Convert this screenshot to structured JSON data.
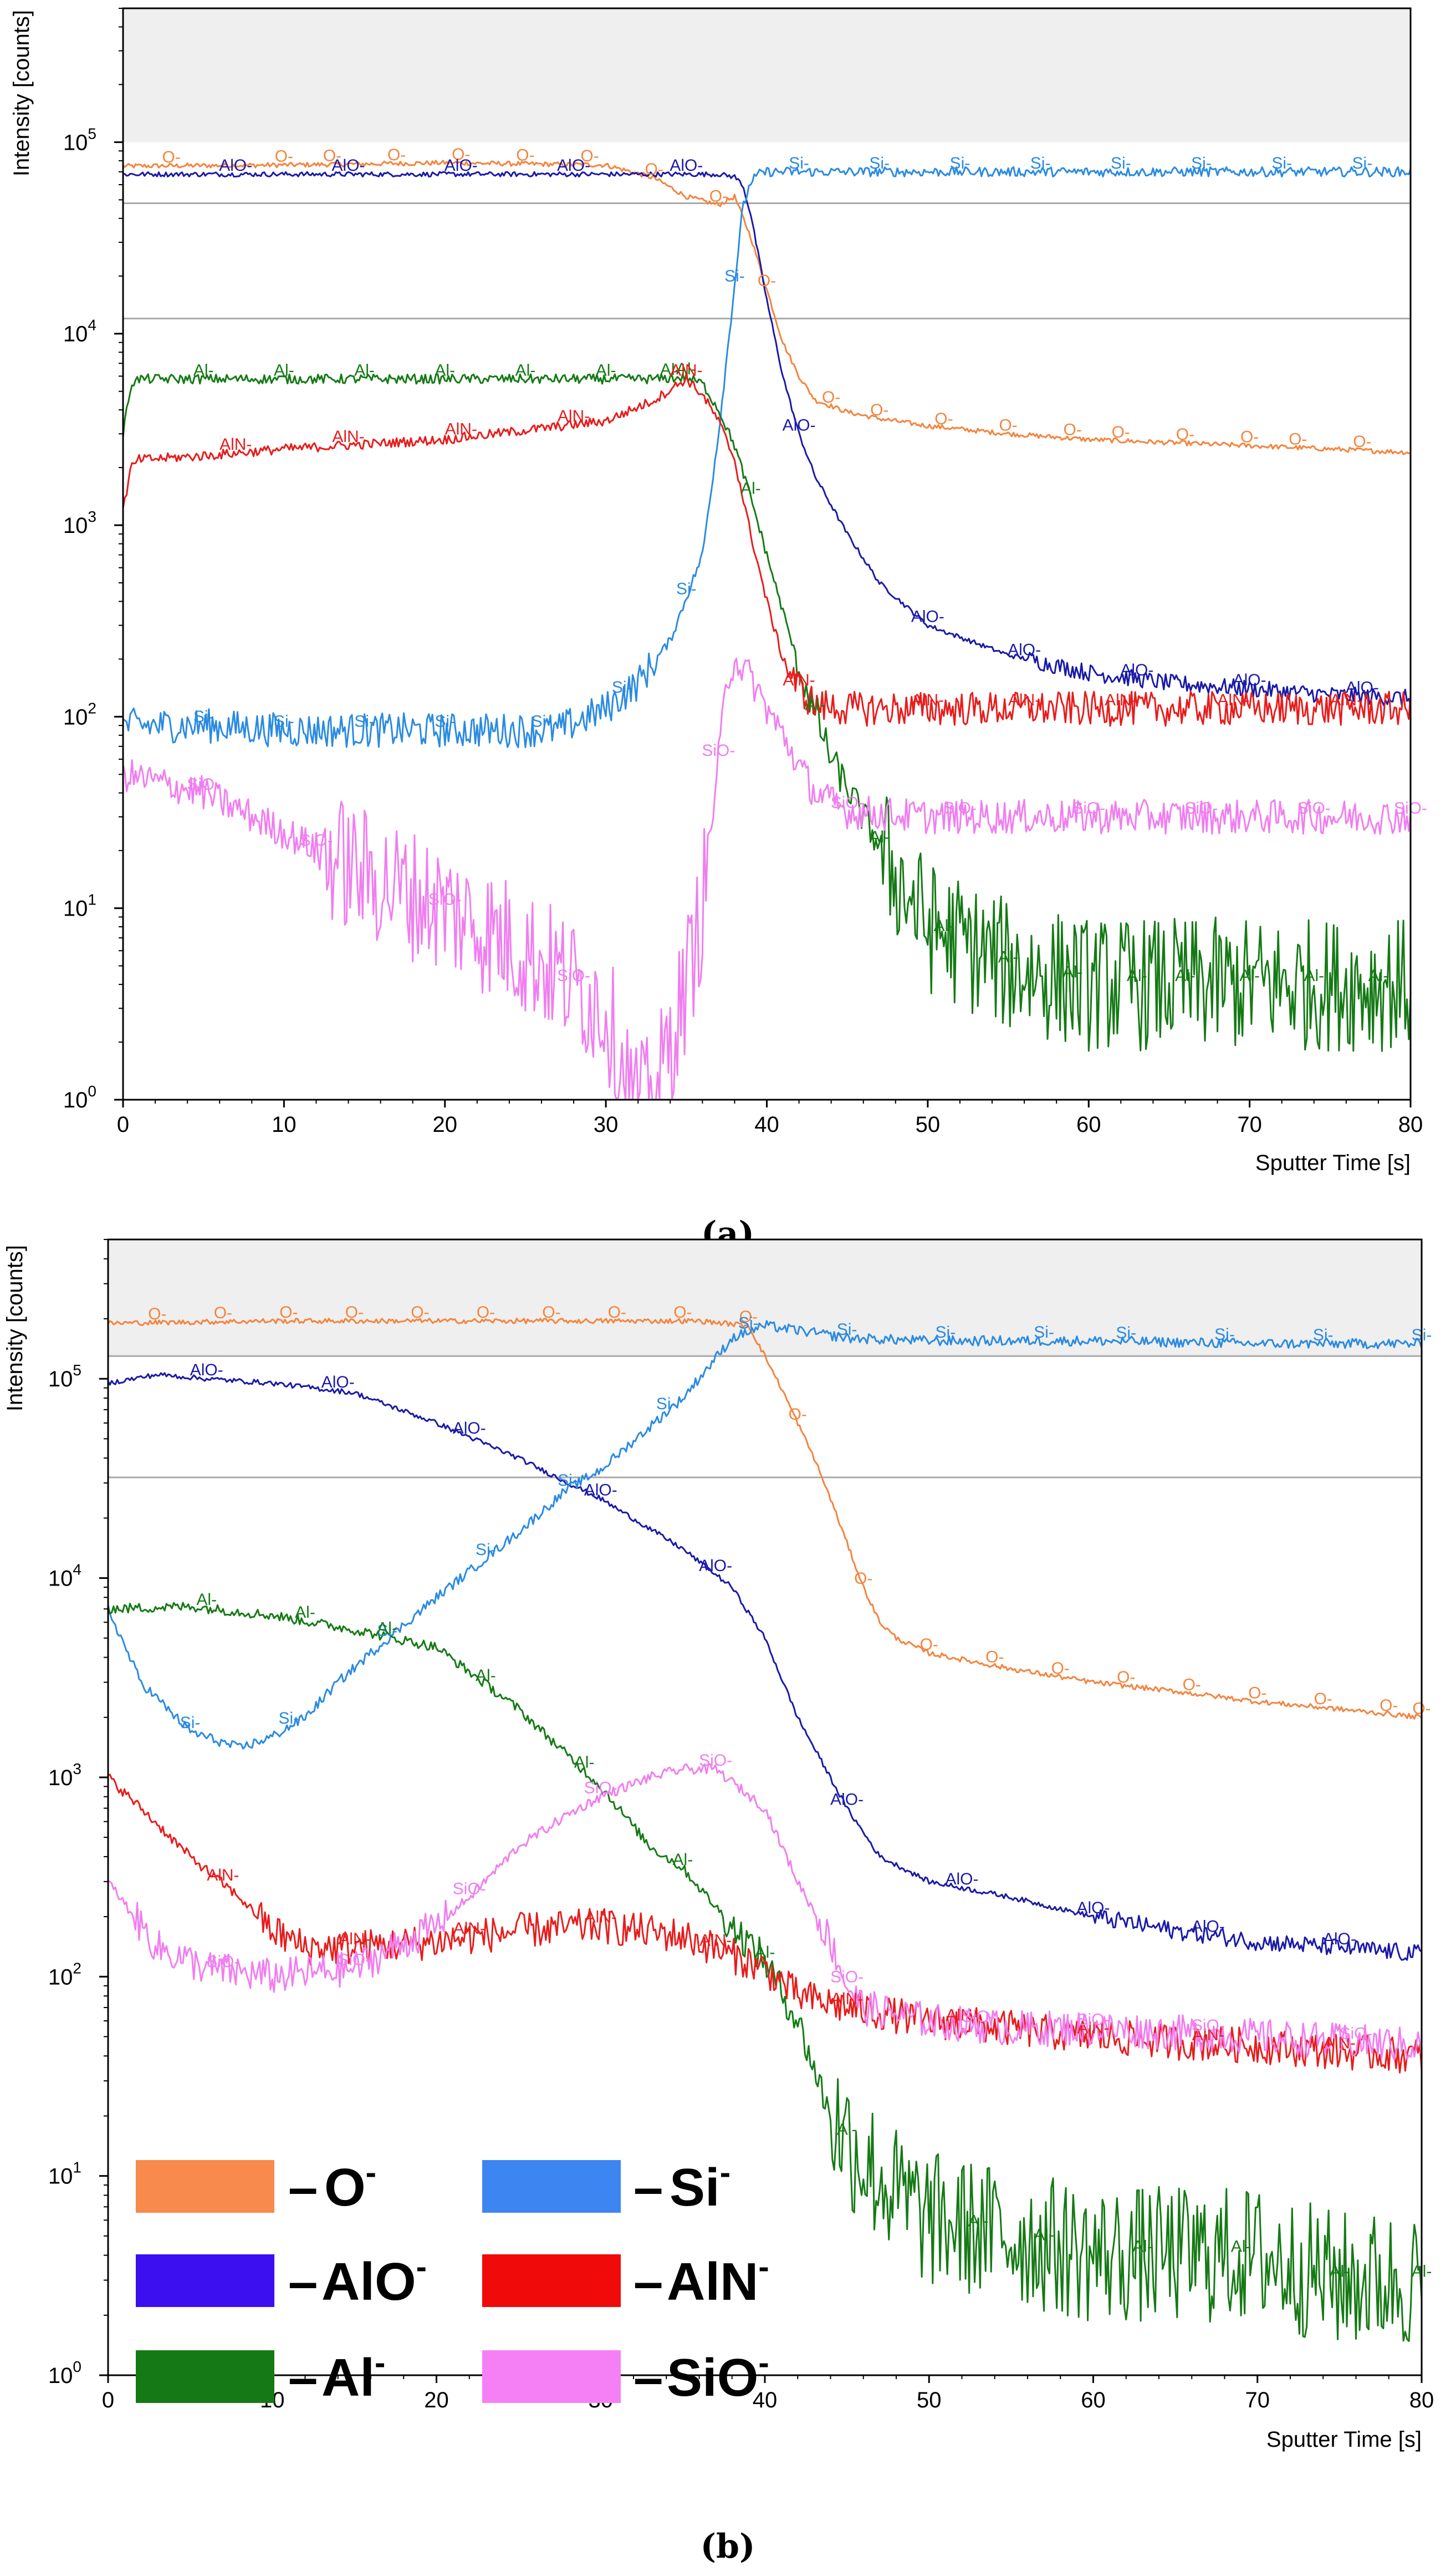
{
  "colors": {
    "O-": "#f4843e",
    "AlO-": "#1a1aa8",
    "Si-": "#2b8be0",
    "Al-": "#157a15",
    "AlN-": "#e81c1c",
    "SiO-": "#f07ef0"
  },
  "legend": {
    "items": [
      {
        "key": "O-",
        "text": "O",
        "sup": "-",
        "swatch": "#f78a4c"
      },
      {
        "key": "Si-",
        "text": "Si",
        "sup": "-",
        "swatch": "#3d85f0"
      },
      {
        "key": "AlO-",
        "text": "AlO",
        "sup": "-",
        "swatch": "#3b0ff0"
      },
      {
        "key": "AlN-",
        "text": "AlN",
        "sup": "-",
        "swatch": "#f00a0a"
      },
      {
        "key": "Al-",
        "text": "Al",
        "sup": "-",
        "swatch": "#157a15"
      },
      {
        "key": "SiO-",
        "text": "SiO",
        "sup": "-",
        "swatch": "#f580f5"
      }
    ]
  },
  "chart_data": [
    {
      "panel_label": "(a)",
      "type": "line",
      "ylabel": "Intensity [counts]",
      "xlabel": "Sputter Time [s]",
      "yscale": "log",
      "xlim": [
        0,
        80
      ],
      "ylim": [
        1,
        500000
      ],
      "xticks": [
        0,
        10,
        20,
        30,
        40,
        50,
        60,
        70,
        80
      ],
      "yticks": [
        {
          "value": 1,
          "base": "10",
          "exp": "0"
        },
        {
          "value": 10,
          "base": "10",
          "exp": "1"
        },
        {
          "value": 100,
          "base": "10",
          "exp": "2"
        },
        {
          "value": 1000,
          "base": "10",
          "exp": "3"
        },
        {
          "value": 10000,
          "base": "10",
          "exp": "4"
        },
        {
          "value": 100000,
          "base": "10",
          "exp": "5"
        }
      ],
      "shaded_above": 100000,
      "reference_lines": [
        48000,
        12000
      ],
      "series": [
        {
          "name": "O-",
          "x": [
            0,
            10,
            20,
            30,
            33,
            35,
            37,
            38,
            39,
            40,
            41,
            42,
            43,
            45,
            47,
            50,
            55,
            60,
            65,
            70,
            75,
            80
          ],
          "y": [
            75000,
            76000,
            78000,
            76000,
            65000,
            52000,
            47000,
            52000,
            32000,
            17000,
            9000,
            6000,
            4500,
            3900,
            3600,
            3300,
            3000,
            2800,
            2700,
            2600,
            2500,
            2400
          ],
          "labels": [
            3,
            10,
            13,
            17,
            21,
            25,
            29,
            33,
            37,
            40,
            44,
            47,
            51,
            55,
            59,
            62,
            66,
            70,
            73,
            77
          ]
        },
        {
          "name": "AlO-",
          "x": [
            0,
            10,
            20,
            30,
            35,
            37,
            38,
            38.5,
            39,
            40,
            41,
            42,
            43,
            45,
            47,
            50,
            55,
            60,
            65,
            70,
            75,
            80
          ],
          "y": [
            68000,
            68000,
            68000,
            68000,
            68000,
            68000,
            66000,
            60000,
            42000,
            15000,
            6000,
            3000,
            1800,
            900,
            500,
            300,
            210,
            170,
            150,
            140,
            130,
            125
          ],
          "labels": [
            7,
            14,
            21,
            28,
            35,
            42,
            50,
            56,
            63,
            70,
            77
          ]
        },
        {
          "name": "Si-",
          "x": [
            0,
            5,
            10,
            20,
            27,
            30,
            32,
            34,
            36,
            37,
            38,
            38.5,
            39,
            39.5,
            40,
            42,
            45,
            50,
            60,
            70,
            80
          ],
          "y": [
            90,
            90,
            85,
            85,
            85,
            110,
            150,
            250,
            700,
            3000,
            18000,
            45000,
            62000,
            68000,
            70000,
            70000,
            70000,
            70000,
            70000,
            70000,
            70000
          ],
          "labels": [
            5,
            10,
            15,
            20,
            26,
            31,
            35,
            38,
            42,
            47,
            52,
            57,
            62,
            67,
            72,
            77
          ]
        },
        {
          "name": "Al-",
          "x": [
            0,
            0.5,
            1,
            10,
            20,
            30,
            33,
            35,
            36,
            37,
            38,
            39,
            40,
            42,
            44,
            46,
            48,
            50,
            55,
            60,
            65,
            70,
            75,
            80
          ],
          "y": [
            3000,
            5500,
            5800,
            5800,
            5800,
            5800,
            5800,
            5900,
            5500,
            4000,
            2600,
            1400,
            700,
            180,
            60,
            30,
            15,
            8,
            5,
            4,
            4,
            4,
            4,
            4
          ],
          "labels": [
            5,
            10,
            15,
            20,
            25,
            30,
            34,
            35,
            39,
            43,
            47,
            51,
            55,
            59,
            63,
            66,
            70,
            74,
            78
          ]
        },
        {
          "name": "AlN-",
          "x": [
            0,
            0.5,
            1,
            5,
            10,
            20,
            30,
            33,
            35,
            36,
            37,
            38,
            39,
            40,
            41,
            42,
            43,
            45,
            50,
            60,
            70,
            80
          ],
          "y": [
            1200,
            2000,
            2200,
            2300,
            2500,
            2800,
            3500,
            4500,
            5800,
            4800,
            3500,
            2200,
            900,
            400,
            200,
            140,
            115,
            110,
            110,
            110,
            110,
            110
          ],
          "labels": [
            7,
            14,
            21,
            28,
            35,
            42,
            50,
            56,
            62,
            69,
            76
          ]
        },
        {
          "name": "SiO-",
          "x": [
            0,
            5,
            10,
            15,
            20,
            25,
            28,
            30,
            31,
            32,
            33,
            34,
            35,
            36,
            37,
            37.5,
            38,
            39,
            40,
            41,
            42,
            43,
            45,
            50,
            60,
            70,
            80
          ],
          "y": [
            50,
            40,
            25,
            15,
            10,
            6,
            4,
            3,
            1.5,
            0.9,
            1,
            2,
            4,
            10,
            60,
            150,
            200,
            160,
            110,
            80,
            55,
            40,
            32,
            30,
            30,
            30,
            30
          ],
          "labels": [
            5,
            12,
            20,
            28,
            37,
            45,
            52,
            60,
            67,
            74,
            80
          ]
        }
      ]
    },
    {
      "panel_label": "(b)",
      "type": "line",
      "ylabel": "Intensity [counts]",
      "xlabel": "Sputter Time [s]",
      "yscale": "log",
      "xlim": [
        0,
        80
      ],
      "ylim": [
        1,
        500000
      ],
      "xticks": [
        0,
        10,
        20,
        30,
        40,
        50,
        60,
        70,
        80
      ],
      "yticks": [
        {
          "value": 1,
          "base": "10",
          "exp": "0"
        },
        {
          "value": 10,
          "base": "10",
          "exp": "1"
        },
        {
          "value": 100,
          "base": "10",
          "exp": "2"
        },
        {
          "value": 1000,
          "base": "10",
          "exp": "3"
        },
        {
          "value": 10000,
          "base": "10",
          "exp": "4"
        },
        {
          "value": 100000,
          "base": "10",
          "exp": "5"
        }
      ],
      "shaded_above": 130000,
      "reference_lines": [
        130000,
        32000
      ],
      "series": [
        {
          "name": "O-",
          "x": [
            0,
            10,
            20,
            30,
            36,
            39,
            40,
            41,
            42,
            43,
            44,
            45,
            46,
            47,
            48,
            50,
            55,
            60,
            65,
            70,
            75,
            80
          ],
          "y": [
            190000,
            195000,
            195000,
            195000,
            195000,
            185000,
            130000,
            90000,
            60000,
            40000,
            25000,
            15000,
            9000,
            6000,
            5000,
            4200,
            3500,
            3000,
            2700,
            2400,
            2200,
            2000
          ],
          "labels": [
            3,
            7,
            11,
            15,
            19,
            23,
            27,
            31,
            35,
            39,
            42,
            46,
            50,
            54,
            58,
            62,
            66,
            70,
            74,
            78,
            80
          ]
        },
        {
          "name": "AlO-",
          "x": [
            0,
            3,
            6,
            10,
            15,
            20,
            25,
            28,
            30,
            35,
            38,
            40,
            42,
            45,
            47,
            50,
            55,
            60,
            65,
            70,
            75,
            80
          ],
          "y": [
            95000,
            105000,
            100000,
            95000,
            85000,
            60000,
            40000,
            30000,
            25000,
            14000,
            9000,
            5000,
            2000,
            700,
            400,
            300,
            250,
            200,
            170,
            150,
            140,
            130
          ],
          "labels": [
            6,
            14,
            22,
            30,
            37,
            45,
            52,
            60,
            67,
            75
          ]
        },
        {
          "name": "Si-",
          "x": [
            0,
            2,
            5,
            8,
            10,
            12,
            14,
            16,
            18,
            20,
            25,
            28,
            30,
            35,
            38,
            40,
            42,
            45,
            50,
            60,
            70,
            80
          ],
          "y": [
            7000,
            3000,
            1700,
            1400,
            1600,
            2000,
            3000,
            4200,
            5800,
            8000,
            17000,
            28000,
            35000,
            80000,
            160000,
            185000,
            175000,
            160000,
            155000,
            155000,
            150000,
            150000
          ],
          "labels": [
            5,
            11,
            17,
            28,
            23,
            34,
            39,
            45,
            51,
            57,
            62,
            68,
            74,
            80
          ]
        },
        {
          "name": "Al-",
          "x": [
            0,
            5,
            10,
            15,
            20,
            25,
            30,
            33,
            35,
            38,
            40,
            42,
            44,
            46,
            48,
            50,
            55,
            60,
            65,
            70,
            75,
            80
          ],
          "y": [
            7000,
            7200,
            6500,
            5500,
            4500,
            2200,
            900,
            450,
            350,
            180,
            120,
            60,
            20,
            12,
            8,
            6,
            5,
            4,
            4,
            4,
            3,
            3
          ],
          "labels": [
            6,
            12,
            17,
            23,
            29,
            35,
            40,
            45,
            53,
            57,
            63,
            69,
            75,
            80
          ]
        },
        {
          "name": "AlN-",
          "x": [
            0,
            2,
            5,
            8,
            10,
            12,
            15,
            20,
            25,
            30,
            35,
            40,
            42,
            45,
            50,
            55,
            60,
            65,
            70,
            75,
            80
          ],
          "y": [
            1000,
            700,
            400,
            250,
            170,
            140,
            140,
            150,
            170,
            180,
            160,
            110,
            80,
            70,
            60,
            55,
            50,
            47,
            45,
            42,
            40
          ],
          "labels": [
            7,
            15,
            22,
            30,
            37,
            45,
            52,
            60,
            67,
            75
          ]
        },
        {
          "name": "SiO-",
          "x": [
            0,
            3,
            6,
            10,
            15,
            20,
            22,
            25,
            28,
            30,
            33,
            35,
            37,
            40,
            42,
            44,
            45,
            46,
            48,
            50,
            55,
            60,
            70,
            80
          ],
          "y": [
            300,
            140,
            110,
            100,
            110,
            180,
            250,
            450,
            650,
            800,
            1000,
            1100,
            1100,
            700,
            300,
            150,
            90,
            70,
            65,
            60,
            55,
            55,
            50,
            45
          ],
          "labels": [
            7,
            15,
            22,
            30,
            37,
            45,
            53,
            60,
            67,
            76
          ]
        }
      ]
    }
  ]
}
